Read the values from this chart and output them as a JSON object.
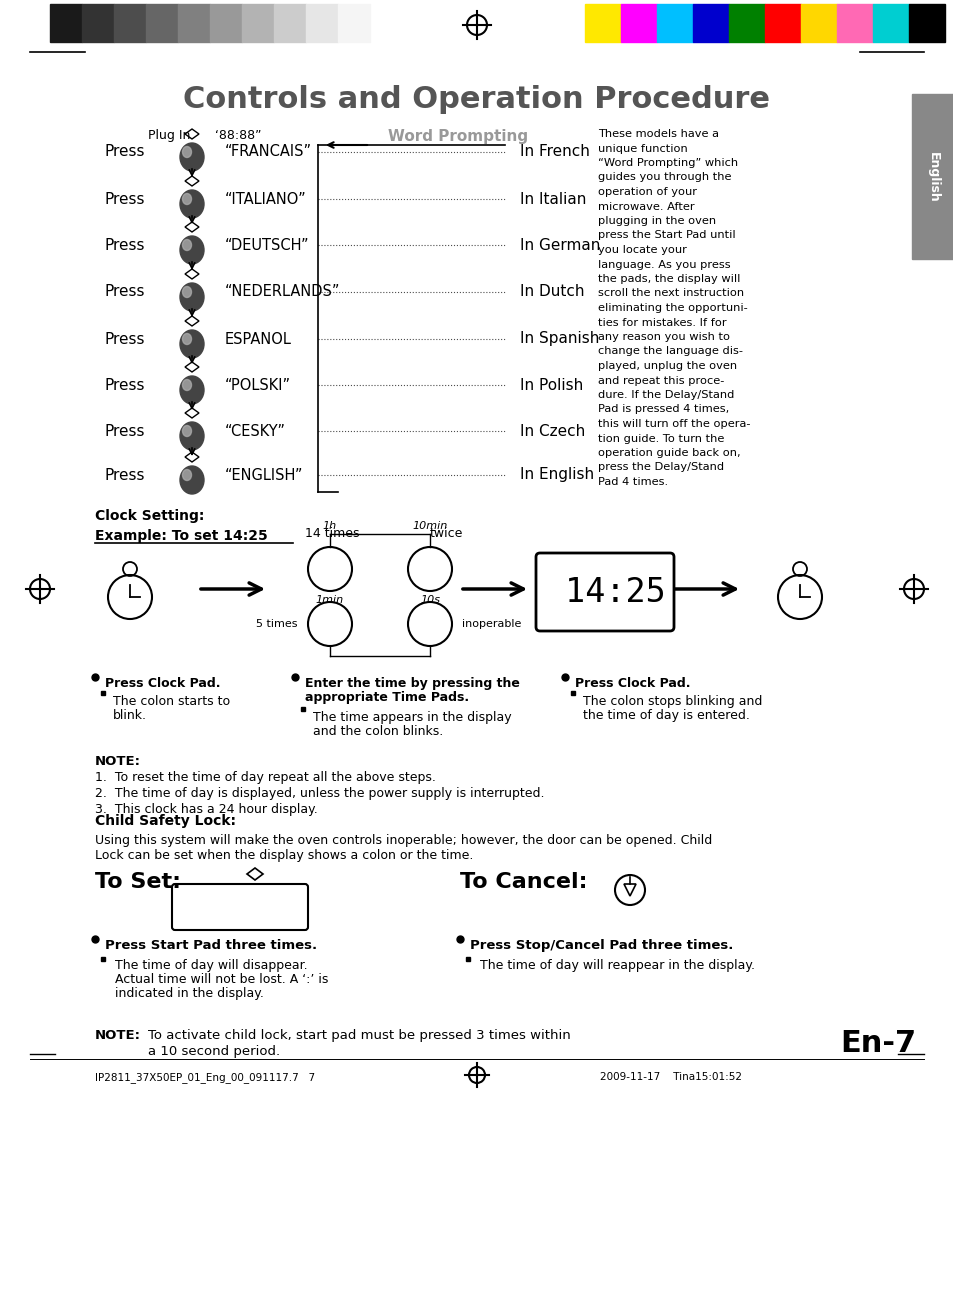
{
  "title": "Controls and Operation Procedure",
  "bg_color": "#ffffff",
  "title_color": "#555555",
  "languages": [
    {
      "display": "“FRANCAIS”",
      "lang": "In French"
    },
    {
      "display": "“ITALIANO”",
      "lang": "In Italian"
    },
    {
      "display": "“DEUTSCH”",
      "lang": "In German"
    },
    {
      "display": "“NEDERLANDS”",
      "lang": "In Dutch"
    },
    {
      "display": "ESPANOL",
      "lang": "In Spanish"
    },
    {
      "display": "“POLSKI”",
      "lang": "In Polish"
    },
    {
      "display": "“CESKY”",
      "lang": "In Czech"
    },
    {
      "display": "“ENGLISH”",
      "lang": "In English"
    }
  ],
  "lang_y_pix": [
    1155,
    1108,
    1062,
    1015,
    968,
    922,
    876,
    832
  ],
  "word_prompting_text": [
    "These models have a",
    "unique function",
    "“Word Prompting” which",
    "guides you through the",
    "operation of your",
    "microwave. After",
    "plugging in the oven",
    "press the Start Pad until",
    "you locate your",
    "language. As you press",
    "the pads, the display will",
    "scroll the next instruction",
    "eliminating the opportuni-",
    "ties for mistakes. If for",
    "any reason you wish to",
    "change the language dis-",
    "played, unplug the oven",
    "and repeat this proce-",
    "dure. If the Delay/Stand",
    "Pad is pressed 4 times,",
    "this will turn off the opera-",
    "tion guide. To turn the",
    "operation guide back on,",
    "press the Delay/Stand",
    "Pad 4 times."
  ],
  "clock_heading": "Clock Setting:",
  "clock_example": "Example: To set 14:25",
  "clock_times_label1": "14 times",
  "clock_twice_label": "twice",
  "clock_label_1h": "1h",
  "clock_label_10min": "10min",
  "clock_label_1min": "1min",
  "clock_label_10s": "10s",
  "clock_label_5times": "5 times",
  "clock_label_inoperable": "inoperable",
  "clock_display": " 14:25",
  "bullet_col1_header": "Press Clock Pad.",
  "bullet_col1_sub": "The colon starts to\nblink.",
  "bullet_col2_header1": "Enter the time by pressing the",
  "bullet_col2_header2": "appropriate Time Pads.",
  "bullet_col2_sub": "The time appears in the display\nand the colon blinks.",
  "bullet_col3_header": "Press Clock Pad.",
  "bullet_col3_sub": "The colon stops blinking and\nthe time of day is entered.",
  "note_header": "NOTE:",
  "note_items": [
    "1.  To reset the time of day repeat all the above steps.",
    "2.  The time of day is displayed, unless the power supply is interrupted.",
    "3.  This clock has a 24 hour display."
  ],
  "child_safety_header": "Child Safety Lock:",
  "child_safety_line1": "Using this system will make the oven controls inoperable; however, the door can be opened. Child",
  "child_safety_line2": "Lock can be set when the display shows a colon or the time.",
  "to_set_label": "To Set:",
  "to_cancel_label": "To Cancel:",
  "press_start_header": "Press Start Pad three times.",
  "press_start_sub1": "The time of day will disappear.",
  "press_start_sub2": "Actual time will not be lost. A ‘:’ is",
  "press_start_sub3": "indicated in the display.",
  "press_stop_header": "Press Stop/Cancel Pad three times.",
  "press_stop_sub": "The time of day will reappear in the display.",
  "final_note_label": "NOTE:",
  "final_note_text1": "To activate child lock, start pad must be pressed 3 times within",
  "final_note_text2": "a 10 second period.",
  "en7_label": "En-7",
  "english_tab": "English",
  "plug_in_label": "Plug In",
  "display_88": "‘88:88”",
  "word_prompting_label": "Word Prompting",
  "footer_left": "IP2811_37X50EP_01_Eng_00_091117.7   7",
  "footer_right": "2009-11-17    Tina15:01:52",
  "gray_colors": [
    "#1a1a1a",
    "#333333",
    "#4d4d4d",
    "#666666",
    "#808080",
    "#999999",
    "#b3b3b3",
    "#cccccc",
    "#e6e6e6",
    "#f5f5f5"
  ],
  "color_bars": [
    "#FFE800",
    "#FF00FF",
    "#00BFFF",
    "#0000CD",
    "#008000",
    "#FF0000",
    "#FFD700",
    "#FF69B4",
    "#00CED1",
    "#000000"
  ]
}
